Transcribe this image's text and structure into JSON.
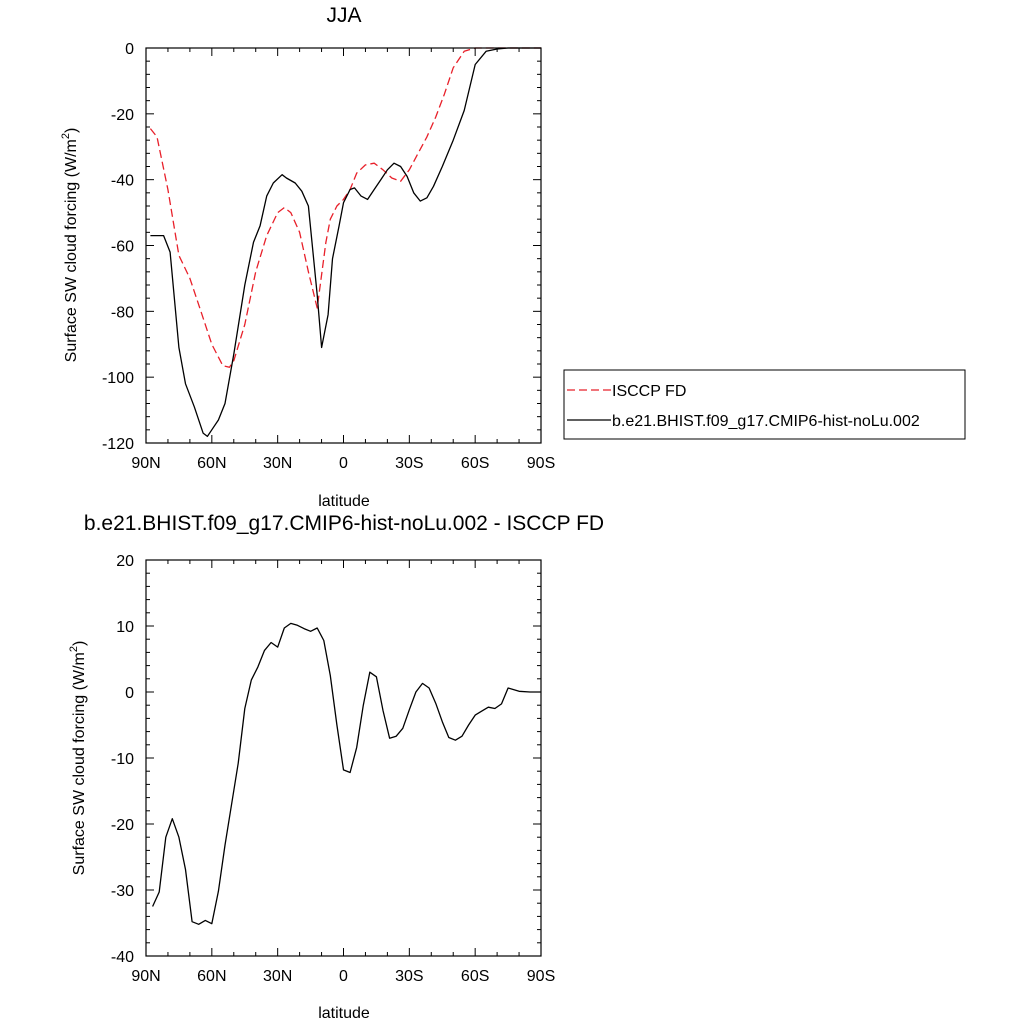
{
  "chart_data": [
    {
      "type": "line",
      "title": "JJA",
      "xlabel": "latitude",
      "ylabel": "Surface SW cloud forcing (W/m",
      "ylabel_sup": "2",
      "ylabel_end": ")",
      "xlim": [
        90,
        -90
      ],
      "ylim": [
        -120,
        0
      ],
      "xticks": [
        90,
        60,
        30,
        0,
        -30,
        -60,
        -90
      ],
      "xtick_labels": [
        "90N",
        "60N",
        "30N",
        "0",
        "30S",
        "60S",
        "90S"
      ],
      "yticks": [
        0,
        -20,
        -40,
        -60,
        -80,
        -100,
        -120
      ],
      "ytick_labels": [
        "0",
        "-20",
        "-40",
        "-60",
        "-80",
        "-100",
        "-120"
      ],
      "legend": "right",
      "series": [
        {
          "name": "ISCCP FD",
          "color": "#e8202a",
          "dash": "dashed",
          "x": [
            88,
            85,
            80,
            75,
            70,
            65,
            60,
            55,
            52,
            50,
            45,
            40,
            35,
            30,
            27,
            24,
            20,
            16,
            12,
            8,
            6,
            3,
            0,
            -3,
            -6,
            -10,
            -14,
            -18,
            -22,
            -26,
            -30,
            -34,
            -38,
            -42,
            -46,
            -50,
            -55,
            -60,
            -65,
            -68,
            -70,
            -75,
            -80,
            -85,
            -90
          ],
          "y": [
            -24.5,
            -27,
            -43,
            -63,
            -70,
            -80,
            -90,
            -96.5,
            -97,
            -95,
            -84,
            -68,
            -57,
            -50,
            -48.5,
            -50,
            -56,
            -68,
            -79,
            -59,
            -52,
            -48,
            -46,
            -43,
            -38,
            -35.5,
            -35,
            -37,
            -39.5,
            -40.5,
            -37,
            -32,
            -27,
            -21,
            -14,
            -6,
            -1,
            0,
            0,
            0,
            0,
            0,
            0,
            0,
            0
          ]
        },
        {
          "name": "b.e21.BHIST.f09_g17.CMIP6-hist-noLu.002",
          "color": "#000000",
          "dash": "solid",
          "x": [
            88,
            82,
            79,
            75,
            72,
            68,
            64,
            62,
            60,
            57,
            54,
            50,
            45,
            41,
            38,
            35,
            32,
            28,
            26,
            22,
            19,
            16,
            12,
            10,
            7,
            5,
            2,
            0,
            -3,
            -5,
            -8,
            -11,
            -14,
            -17,
            -20,
            -23,
            -26,
            -29,
            -32,
            -35,
            -38,
            -41,
            -45,
            -50,
            -55,
            -60,
            -65,
            -70,
            -75,
            -80,
            -85,
            -90
          ],
          "y": [
            -57,
            -57,
            -62,
            -91,
            -102,
            -109,
            -117,
            -118,
            -116,
            -113,
            -108,
            -93,
            -72,
            -59,
            -54,
            -45,
            -41,
            -38.5,
            -39.5,
            -41,
            -43.5,
            -48,
            -75,
            -91,
            -81,
            -64,
            -54,
            -47,
            -43,
            -42.5,
            -45,
            -46,
            -43,
            -40,
            -37,
            -35,
            -36,
            -39,
            -44,
            -46.5,
            -45.5,
            -42,
            -36,
            -28,
            -19,
            -5,
            -1,
            -0.3,
            0,
            0,
            0,
            0
          ]
        }
      ]
    },
    {
      "type": "line",
      "title": "b.e21.BHIST.f09_g17.CMIP6-hist-noLu.002 - ISCCP FD",
      "xlabel": "latitude",
      "ylabel": "Surface SW cloud forcing (W/m",
      "ylabel_sup": "2",
      "ylabel_end": ")",
      "xlim": [
        90,
        -90
      ],
      "ylim": [
        -40,
        20
      ],
      "xticks": [
        90,
        60,
        30,
        0,
        -30,
        -60,
        -90
      ],
      "xtick_labels": [
        "90N",
        "60N",
        "30N",
        "0",
        "30S",
        "60S",
        "90S"
      ],
      "yticks": [
        20,
        10,
        0,
        -10,
        -20,
        -30,
        -40
      ],
      "ytick_labels": [
        "20",
        "10",
        "0",
        "-10",
        "-20",
        "-30",
        "-40"
      ],
      "series": [
        {
          "color": "#000000",
          "dash": "solid",
          "x": [
            87,
            84,
            81,
            78,
            75,
            72,
            69,
            66,
            63,
            60,
            57,
            54,
            51,
            48,
            45,
            42,
            39,
            36,
            33,
            30,
            27,
            24,
            21,
            18,
            15,
            12,
            9,
            6,
            3,
            0,
            -3,
            -6,
            -9,
            -12,
            -15,
            -18,
            -21,
            -24,
            -27,
            -30,
            -33,
            -36,
            -39,
            -42,
            -45,
            -48,
            -51,
            -54,
            -57,
            -60,
            -63,
            -66,
            -69,
            -72,
            -75,
            -80,
            -85,
            -90
          ],
          "y": [
            -32.5,
            -30.3,
            -22,
            -19.2,
            -22,
            -26.9,
            -34.8,
            -35.2,
            -34.6,
            -35.1,
            -30.2,
            -23.2,
            -17,
            -10.8,
            -2.5,
            1.8,
            3.8,
            6.3,
            7.5,
            6.8,
            9.7,
            10.4,
            10.1,
            9.6,
            9.2,
            9.7,
            7.8,
            2.5,
            -5,
            -11.8,
            -12.2,
            -8.4,
            -2,
            3,
            2.3,
            -2.8,
            -7,
            -6.7,
            -5.5,
            -2.7,
            0,
            1.3,
            0.6,
            -1.7,
            -4.5,
            -6.9,
            -7.3,
            -6.7,
            -5,
            -3.5,
            -2.9,
            -2.3,
            -2.5,
            -1.8,
            0.6,
            0.1,
            0,
            0
          ]
        }
      ]
    }
  ]
}
